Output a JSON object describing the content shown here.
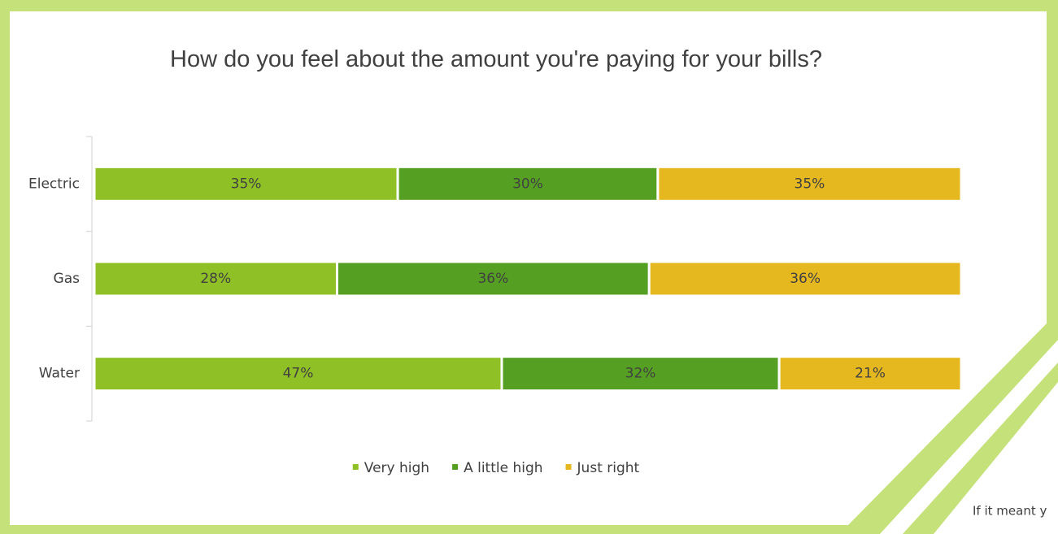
{
  "chart_data": {
    "type": "stacked_bar_horizontal",
    "title": "How do you feel about the amount you're paying for your bills?",
    "categories": [
      "Electric",
      "Gas",
      "Water"
    ],
    "series": [
      {
        "name": "Very high",
        "color": "#8fc026",
        "values": [
          35,
          28,
          47
        ],
        "value_labels": [
          "35%",
          "28%",
          "47%"
        ]
      },
      {
        "name": "A little high",
        "color": "#55a022",
        "values": [
          30,
          36,
          32
        ],
        "value_labels": [
          "30%",
          "36%",
          "32%"
        ]
      },
      {
        "name": "Just right",
        "color": "#e6b820",
        "values": [
          35,
          36,
          21
        ],
        "value_labels": [
          "35%",
          "36%",
          "21%"
        ]
      }
    ],
    "xlim": [
      0,
      100
    ],
    "legend": "bottom"
  },
  "side_text": "If it meant y"
}
